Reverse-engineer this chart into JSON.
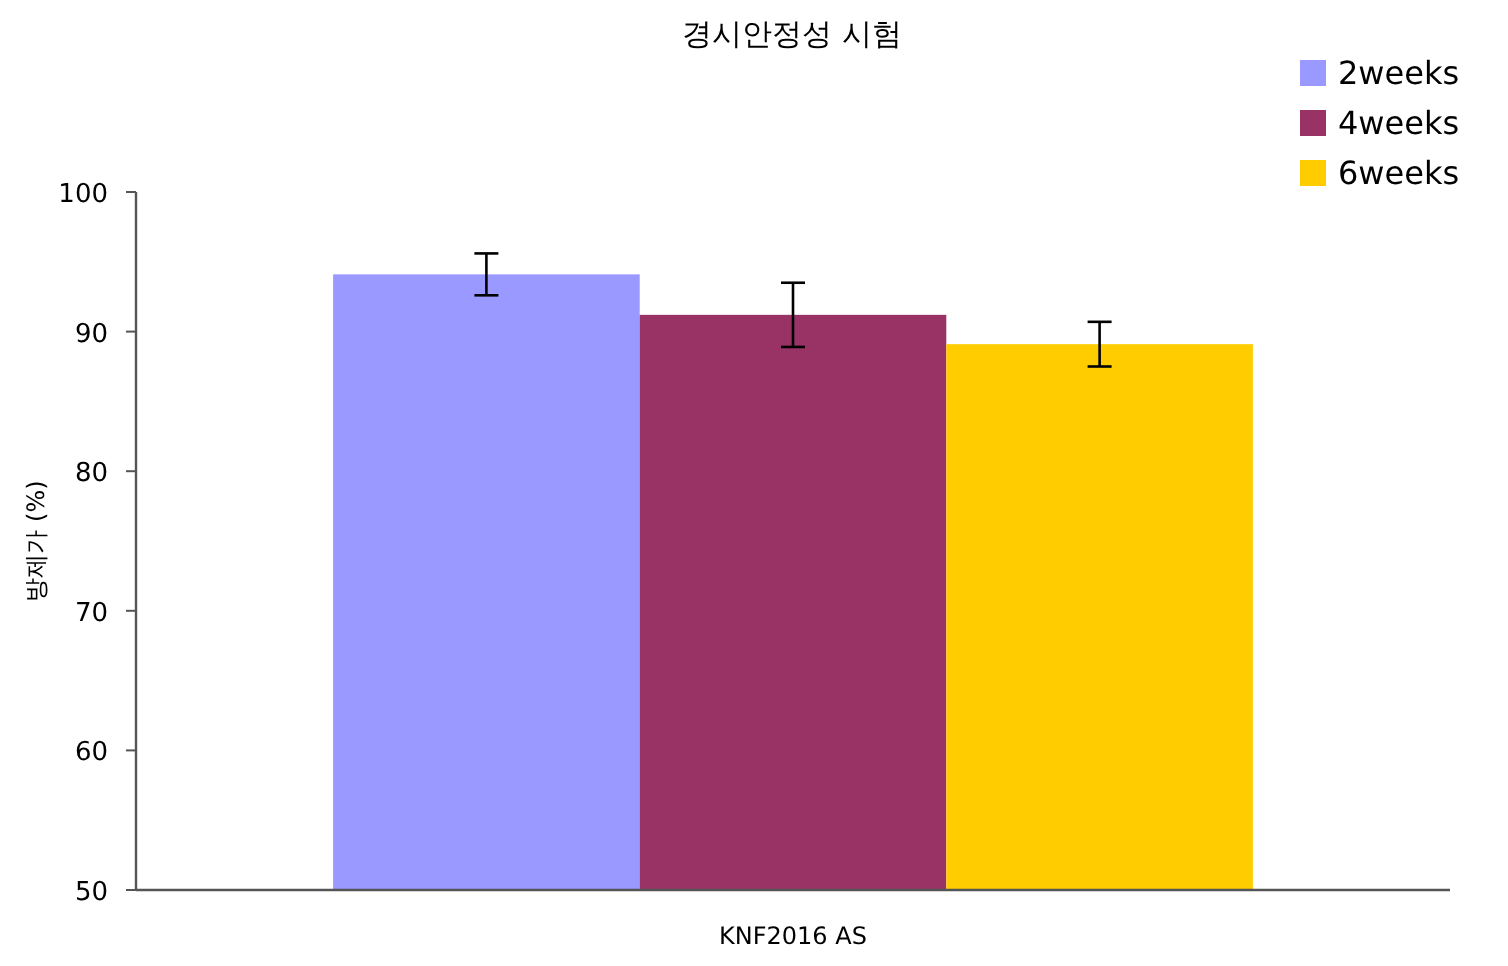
{
  "chart_data": {
    "type": "bar",
    "title": "경시안정성 시험",
    "ylabel": "방제가 (%)",
    "categories": [
      "KNF2016 AS"
    ],
    "series": [
      {
        "name": "2weeks",
        "color": "#9999ff",
        "values": [
          94.1
        ],
        "errors": [
          1.5
        ]
      },
      {
        "name": "4weeks",
        "color": "#993366",
        "values": [
          91.2
        ],
        "errors": [
          2.3
        ]
      },
      {
        "name": "6weeks",
        "color": "#ffcc00",
        "values": [
          89.1
        ],
        "errors": [
          1.6
        ]
      }
    ],
    "ylim": [
      50,
      100
    ],
    "yticks": [
      50,
      60,
      70,
      80,
      90,
      100
    ],
    "grid": false,
    "legend": "top right"
  }
}
